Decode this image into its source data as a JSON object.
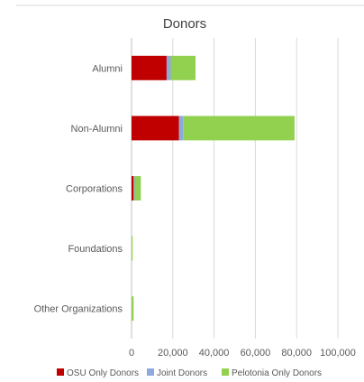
{
  "chart_data": {
    "type": "bar",
    "orientation": "horizontal",
    "stacked": true,
    "title": "Donors",
    "categories": [
      "Alumni",
      "Non-Alumni",
      "Corporations",
      "Foundations",
      "Other Organizations"
    ],
    "series": [
      {
        "name": "OSU Only Donors",
        "color": "#C00000",
        "values": [
          17000,
          23000,
          1000,
          0,
          0
        ]
      },
      {
        "name": "Joint Donors",
        "color": "#8EA9DB",
        "values": [
          2000,
          2000,
          500,
          0,
          0
        ]
      },
      {
        "name": "Pelotonia Only Donors",
        "color": "#92D050",
        "values": [
          12000,
          54000,
          3000,
          300,
          1000
        ]
      }
    ],
    "xlim": [
      0,
      100000
    ],
    "x_ticks": [
      0,
      20000,
      40000,
      60000,
      80000,
      100000
    ],
    "x_tick_labels": [
      "0",
      "20,000",
      "40,000",
      "60,000",
      "80,000",
      "100,000"
    ],
    "grid": true,
    "legend_position": "bottom"
  }
}
